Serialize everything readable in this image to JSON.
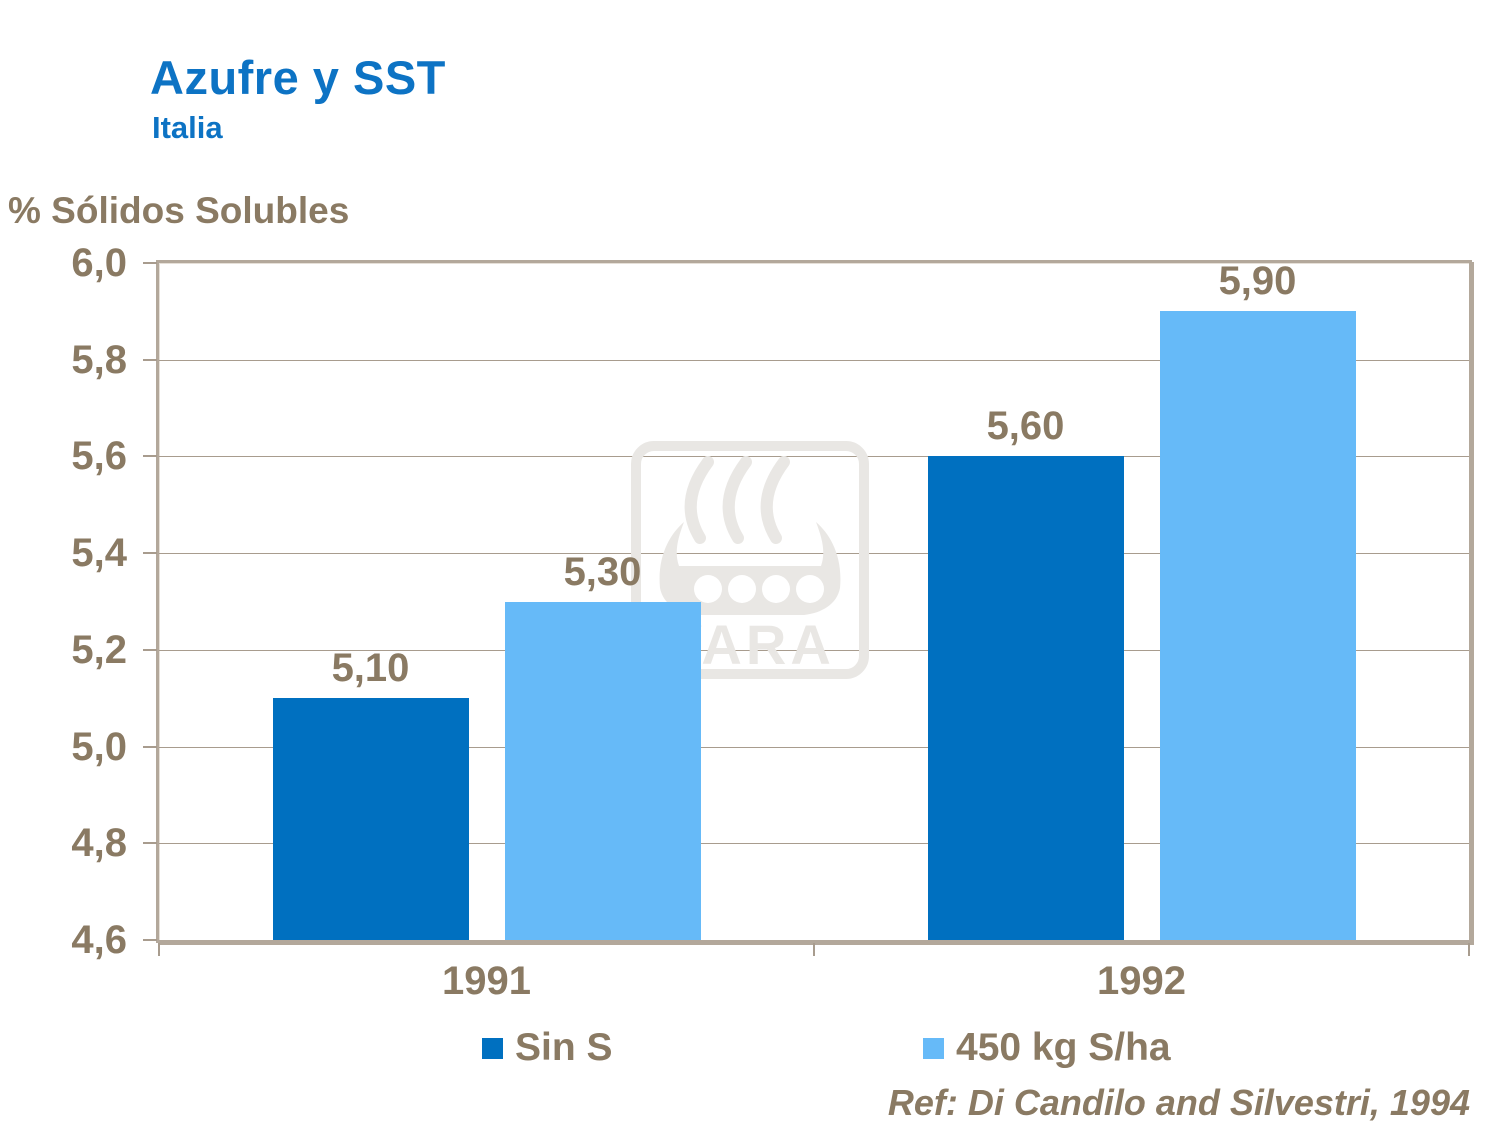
{
  "header": {
    "title": "Azufre y SST",
    "subtitle": "Italia"
  },
  "axis": {
    "y_title": "% Sólidos Solubles"
  },
  "watermark": {
    "brand": "YARA"
  },
  "footer": {
    "reference": "Ref: Di Candilo and Silvestri, 1994"
  },
  "colors": {
    "title_blue": "#0d73c4",
    "label_brown": "#8a7a63",
    "frame_tan": "#b3a89b",
    "gridline_tan": "#a89c8e",
    "series_sin_s": "#0070c0",
    "series_450kg": "#66baf8",
    "watermark_gray": "#e9e7e4"
  },
  "chart_data": {
    "type": "bar",
    "title": "Azufre y SST",
    "subtitle": "Italia",
    "ylabel": "% Sólidos Solubles",
    "xlabel": "",
    "categories": [
      "1991",
      "1992"
    ],
    "series": [
      {
        "name": "Sin S",
        "color": "#0070c0",
        "values": [
          5.1,
          5.6
        ],
        "labels": [
          "5,10",
          "5,60"
        ]
      },
      {
        "name": "450 kg S/ha",
        "color": "#66baf8",
        "values": [
          5.3,
          5.9
        ],
        "labels": [
          "5,30",
          "5,90"
        ]
      }
    ],
    "ylim": [
      4.6,
      6.0
    ],
    "ytick_step": 0.2,
    "ytick_labels": [
      "4,6",
      "4,8",
      "5,0",
      "5,2",
      "5,4",
      "5,6",
      "5,8",
      "6,0"
    ],
    "grid": true,
    "legend_position": "bottom",
    "annotation": "Ref: Di Candilo and Silvestri, 1994"
  }
}
